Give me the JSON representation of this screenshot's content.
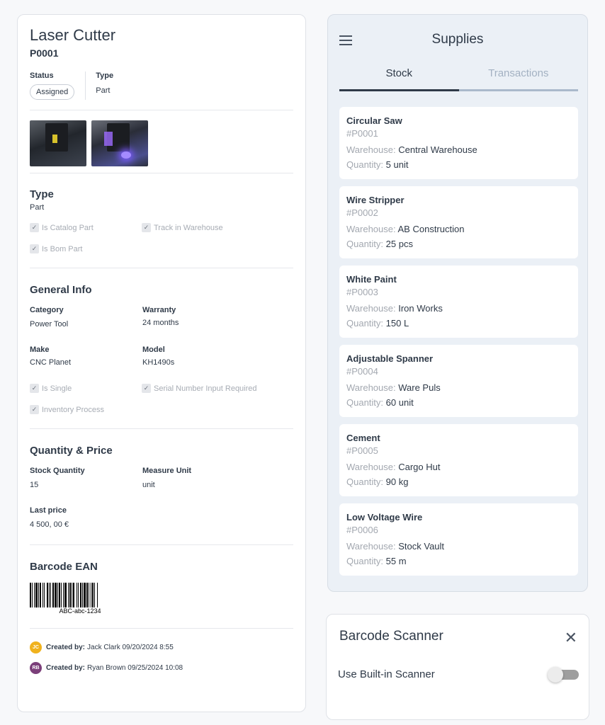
{
  "detail": {
    "title": "Laser Cutter",
    "code": "P0001",
    "status_label": "Status",
    "status_value": "Assigned",
    "type_label": "Type",
    "type_value": "Part",
    "type_section": {
      "title": "Type",
      "value": "Part",
      "checks": [
        "Is Catalog Part",
        "Track in Warehouse",
        "Is Bom Part"
      ]
    },
    "general": {
      "title": "General Info",
      "fields": [
        {
          "label": "Category",
          "value": "Power Tool"
        },
        {
          "label": "Warranty",
          "value": "24 months"
        },
        {
          "label": "Make",
          "value": "CNC Planet"
        },
        {
          "label": "Model",
          "value": "KH1490s"
        }
      ],
      "checks": [
        "Is Single",
        "Serial Number Input Required",
        "Inventory Process"
      ]
    },
    "qty": {
      "title": "Quantity & Price",
      "fields": [
        {
          "label": "Stock Quantity",
          "value": "15"
        },
        {
          "label": "Measure Unit",
          "value": "unit"
        },
        {
          "label": "Last price",
          "value": "4 500, 00 €"
        }
      ]
    },
    "barcode": {
      "title": "Barcode EAN",
      "value": "ABC-abc-1234"
    },
    "creators": [
      {
        "initials": "JC",
        "label": "Created by:",
        "text": "Jack Clark 09/20/2024  8:55",
        "color": "#f0b21d"
      },
      {
        "initials": "RB",
        "label": "Created by:",
        "text": "Ryan Brown 09/25/2024  10:08",
        "color": "#7b3f7a"
      }
    ]
  },
  "supplies": {
    "title": "Supplies",
    "tabs": [
      "Stock",
      "Transactions"
    ],
    "warehouse_label": "Warehouse:",
    "quantity_label": "Quantity:",
    "items": [
      {
        "name": "Circular Saw",
        "code": "#P0001",
        "warehouse": "Central Warehouse",
        "quantity": "5 unit"
      },
      {
        "name": "Wire Stripper",
        "code": "#P0002",
        "warehouse": "AB Construction",
        "quantity": "25 pcs"
      },
      {
        "name": "White Paint",
        "code": "#P0003",
        "warehouse": "Iron Works",
        "quantity": "150 L"
      },
      {
        "name": "Adjustable Spanner",
        "code": "#P0004",
        "warehouse": "Ware Puls",
        "quantity": "60 unit"
      },
      {
        "name": "Cement",
        "code": "#P0005",
        "warehouse": "Cargo Hut",
        "quantity": "90 kg"
      },
      {
        "name": "Low Voltage Wire",
        "code": "#P0006",
        "warehouse": "Stock Vault",
        "quantity": "55 m"
      }
    ]
  },
  "scanner": {
    "title": "Barcode Scanner",
    "option": "Use Built-in Scanner",
    "enabled": false
  }
}
